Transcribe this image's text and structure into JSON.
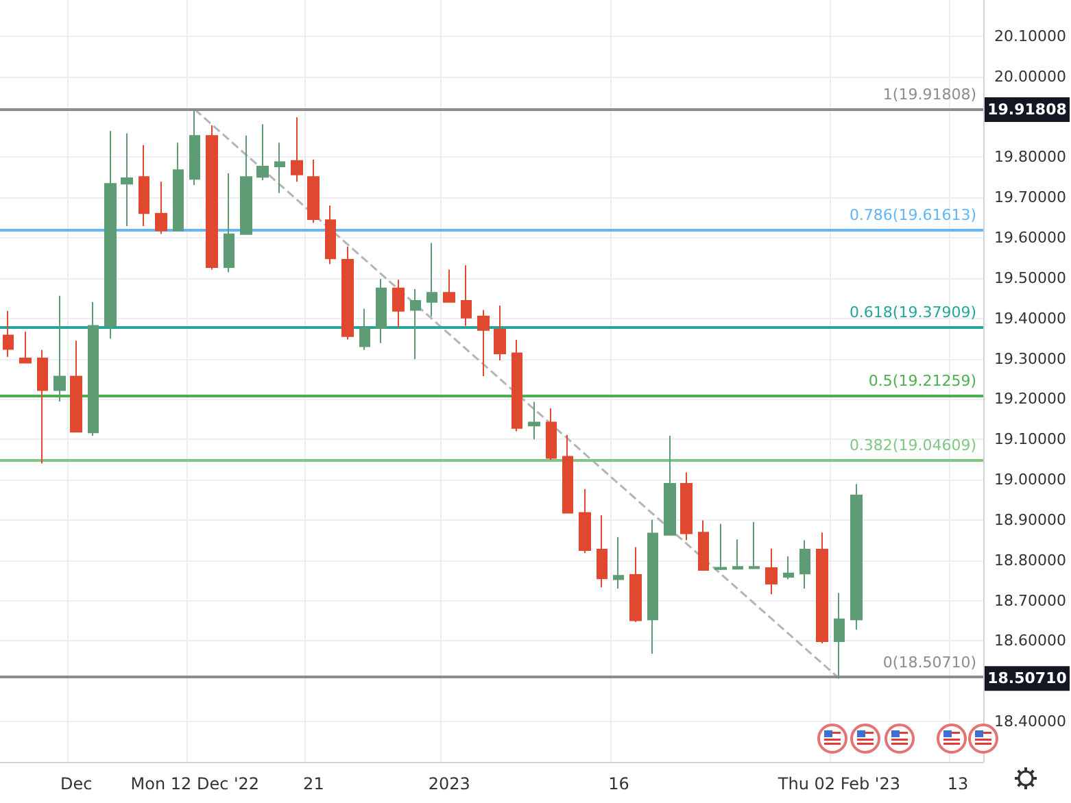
{
  "chart_data": {
    "type": "candlestick",
    "categories": [
      null,
      null,
      null,
      null,
      "Dec",
      null,
      null,
      null,
      null,
      null,
      null,
      "Mon 12 Dec '22",
      null,
      null,
      null,
      null,
      null,
      null,
      "21",
      null,
      null,
      null,
      null,
      null,
      null,
      null,
      "2023",
      null,
      null,
      null,
      null,
      null,
      null,
      null,
      null,
      null,
      "16",
      null,
      null,
      null,
      null,
      null,
      null,
      null,
      null,
      null,
      null,
      null,
      null,
      "Thu 02 Feb '23",
      null,
      null,
      null,
      null,
      null,
      null,
      "13",
      null
    ],
    "ohlc": [
      [
        19.358,
        19.419,
        19.305,
        19.324
      ],
      [
        19.301,
        19.367,
        19.29,
        19.29
      ],
      [
        19.301,
        19.322,
        19.04,
        19.222
      ],
      [
        19.222,
        19.456,
        19.194,
        19.256
      ],
      [
        19.256,
        19.345,
        19.119,
        19.119
      ],
      [
        19.117,
        19.441,
        19.109,
        19.382
      ],
      [
        19.382,
        19.865,
        19.35,
        19.734
      ],
      [
        19.734,
        19.859,
        19.629,
        19.748
      ],
      [
        19.751,
        19.83,
        19.629,
        19.661
      ],
      [
        19.66,
        19.739,
        19.61,
        19.618
      ],
      [
        19.618,
        19.836,
        19.618,
        19.768
      ],
      [
        19.746,
        19.918,
        19.731,
        19.853
      ],
      [
        19.853,
        19.879,
        19.521,
        19.527
      ],
      [
        19.527,
        19.76,
        19.515,
        19.609
      ],
      [
        19.609,
        19.854,
        19.609,
        19.751
      ],
      [
        19.751,
        19.882,
        19.743,
        19.777
      ],
      [
        19.777,
        19.836,
        19.711,
        19.788
      ],
      [
        19.791,
        19.899,
        19.739,
        19.757
      ],
      [
        19.751,
        19.794,
        19.637,
        19.646
      ],
      [
        19.644,
        19.68,
        19.535,
        19.549
      ],
      [
        19.546,
        19.578,
        19.348,
        19.356
      ],
      [
        19.331,
        19.424,
        19.322,
        19.376
      ],
      [
        19.376,
        19.498,
        19.339,
        19.475
      ],
      [
        19.475,
        19.496,
        19.379,
        19.419
      ],
      [
        19.421,
        19.473,
        19.299,
        19.444
      ],
      [
        19.441,
        19.587,
        19.405,
        19.464
      ],
      [
        19.464,
        19.521,
        19.441,
        19.441
      ],
      [
        19.444,
        19.532,
        19.382,
        19.402
      ],
      [
        19.405,
        19.421,
        19.257,
        19.371
      ],
      [
        19.373,
        19.432,
        19.296,
        19.313
      ],
      [
        19.314,
        19.347,
        19.12,
        19.128
      ],
      [
        19.134,
        19.193,
        19.1,
        19.142
      ],
      [
        19.142,
        19.177,
        19.049,
        19.054
      ],
      [
        19.057,
        19.111,
        18.916,
        18.918
      ],
      [
        18.918,
        18.977,
        18.818,
        18.825
      ],
      [
        18.827,
        18.912,
        18.733,
        18.755
      ],
      [
        18.753,
        18.858,
        18.73,
        18.762
      ],
      [
        18.764,
        18.833,
        18.647,
        18.651
      ],
      [
        18.653,
        18.901,
        18.568,
        18.867
      ],
      [
        18.863,
        19.109,
        18.863,
        18.99
      ],
      [
        18.99,
        19.018,
        18.85,
        18.867
      ],
      [
        18.869,
        18.899,
        18.776,
        18.776
      ],
      [
        18.778,
        18.89,
        18.776,
        18.782
      ],
      [
        18.779,
        18.852,
        18.779,
        18.784
      ],
      [
        18.78,
        18.895,
        18.78,
        18.784
      ],
      [
        18.781,
        18.829,
        18.716,
        18.742
      ],
      [
        18.759,
        18.81,
        18.753,
        18.768
      ],
      [
        18.767,
        18.85,
        18.73,
        18.827
      ],
      [
        18.827,
        18.869,
        18.594,
        18.599
      ],
      [
        18.599,
        18.719,
        18.507,
        18.654
      ],
      [
        18.653,
        18.989,
        18.628,
        18.961
      ],
      null,
      null,
      null,
      null,
      null,
      null,
      null
    ],
    "colors": [
      "#e0482f",
      "#e0482f",
      "#e0482f",
      "#5e9c76",
      "#e0482f",
      "#5e9c76",
      "#5e9c76",
      "#5e9c76",
      "#e0482f",
      "#e0482f",
      "#5e9c76",
      "#5e9c76",
      "#e0482f",
      "#5e9c76",
      "#5e9c76",
      "#5e9c76",
      "#5e9c76",
      "#e0482f",
      "#e0482f",
      "#e0482f",
      "#e0482f",
      "#5e9c76",
      "#5e9c76",
      "#e0482f",
      "#5e9c76",
      "#5e9c76",
      "#e0482f",
      "#e0482f",
      "#e0482f",
      "#e0482f",
      "#e0482f",
      "#5e9c76",
      "#e0482f",
      "#e0482f",
      "#e0482f",
      "#e0482f",
      "#5e9c76",
      "#e0482f",
      "#5e9c76",
      "#5e9c76",
      "#e0482f",
      "#e0482f",
      "#5e9c76",
      "#5e9c76",
      "#5e9c76",
      "#e0482f",
      "#5e9c76",
      "#5e9c76",
      "#e0482f",
      "#5e9c76",
      "#5e9c76",
      null,
      null,
      null,
      null,
      null,
      null,
      null
    ],
    "series": [
      {
        "type": "line",
        "x": [
          "Mon 12 Dec '22",
          "Thu 02 Feb '23"
        ],
        "values": [
          19.91808,
          18.5071
        ],
        "color": "#b4b4b4",
        "line_style": "dashed"
      }
    ],
    "ylim": [
      18.3,
      20.19
    ],
    "yticks": [
      {
        "value": 18.4,
        "label": "18.40000"
      },
      {
        "value": 18.6,
        "label": "18.60000"
      },
      {
        "value": 18.7,
        "label": "18.70000"
      },
      {
        "value": 18.8,
        "label": "18.80000"
      },
      {
        "value": 18.9,
        "label": "18.90000"
      },
      {
        "value": 19.0,
        "label": "19.00000"
      },
      {
        "value": 19.1,
        "label": "19.10000"
      },
      {
        "value": 19.2,
        "label": "19.20000"
      },
      {
        "value": 19.3,
        "label": "19.30000"
      },
      {
        "value": 19.4,
        "label": "19.40000"
      },
      {
        "value": 19.5,
        "label": "19.50000"
      },
      {
        "value": 19.6,
        "label": "19.60000"
      },
      {
        "value": 19.7,
        "label": "19.70000"
      },
      {
        "value": 19.8,
        "label": "19.80000"
      },
      {
        "value": 20.0,
        "label": "20.00000"
      },
      {
        "value": 20.1,
        "label": "20.10000"
      }
    ],
    "ref_lines": [
      {
        "axis": "y",
        "value": 19.91808,
        "label": "1(19.91808)",
        "color": "#8c8c8c"
      },
      {
        "axis": "y",
        "value": 19.61613,
        "label": "0.786(19.61613)",
        "color": "#64b5f6"
      },
      {
        "axis": "y",
        "value": 19.37909,
        "label": "0.618(19.37909)",
        "color": "#26a69a"
      },
      {
        "axis": "y",
        "value": 19.21259,
        "label": "0.5(19.21259)",
        "color": "#4caf50"
      },
      {
        "axis": "y",
        "value": 19.04609,
        "label": "0.382(19.04609)",
        "color": "#81c784"
      },
      {
        "axis": "y",
        "value": 18.5071,
        "label": "0(18.50710)",
        "color": "#8c8c8c"
      }
    ],
    "annotations": [
      "19.91808",
      "18.50710"
    ],
    "grid": true
  }
}
